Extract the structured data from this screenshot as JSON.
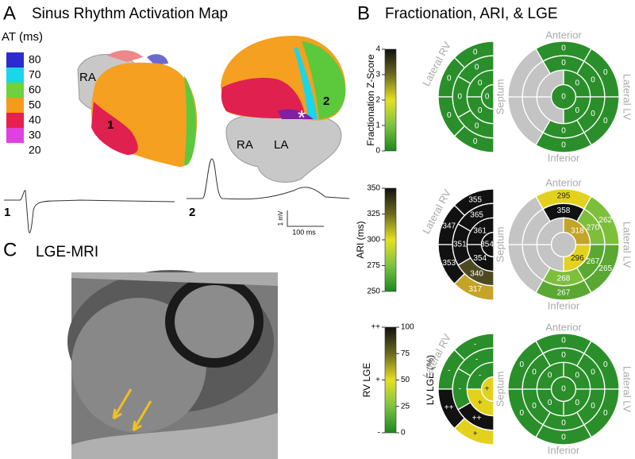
{
  "panel_a": {
    "letter": "A",
    "title": "Sinus Rhythm Activation Map",
    "legend_title": "AT (ms)",
    "legend": [
      {
        "label": 80,
        "color": "#2b2bd0"
      },
      {
        "label": 70,
        "color": "#19d6e8"
      },
      {
        "label": 60,
        "color": "#6fd23c"
      },
      {
        "label": 50,
        "color": "#f59a1a"
      },
      {
        "label": 40,
        "color": "#e8204e"
      },
      {
        "label": 30,
        "color": "#e040e0"
      },
      {
        "label": 20,
        "color": "#ffffff"
      }
    ],
    "map_labels": {
      "left_ra": "RA",
      "left_site": 1,
      "right_site": 2,
      "star": "*",
      "right_ra": "RA",
      "right_la": "LA"
    },
    "traces": [
      1,
      2
    ],
    "scale_voltage": "1 mV",
    "scale_time": "100 ms"
  },
  "panel_b": {
    "letter": "B",
    "title": "Fractionation, ARI, & LGE",
    "rows": [
      {
        "colorbar": {
          "label": "Fractionation Z-Score",
          "ylim": [
            0,
            4
          ],
          "yticks": [
            0,
            1,
            2,
            3,
            4
          ],
          "colors": [
            "#1a8a1a",
            "#7cc242",
            "#e6e020",
            "#6b6a1e",
            "#111111"
          ]
        },
        "rv": {
          "orientation": "Lateral RV",
          "segments": [
            {
              "label": 0,
              "color": "#2a8f2a"
            },
            {
              "label": 0,
              "color": "#2a8f2a"
            },
            {
              "label": 0,
              "color": "#2a8f2a"
            },
            {
              "label": 0,
              "color": "#2a8f2a"
            },
            {
              "label": 0,
              "color": "#2a8f2a"
            },
            {
              "label": 0,
              "color": "#2a8f2a"
            },
            {
              "label": 0,
              "color": "#2a8f2a"
            },
            {
              "label": 0,
              "color": "#2a8f2a"
            },
            {
              "label": 0,
              "color": "#2a8f2a"
            },
            {
              "label": 0,
              "color": "#2a8f2a"
            }
          ]
        },
        "lv": {
          "orientation": {
            "top": "Anterior",
            "bottom": "Inferior",
            "left": "Septum",
            "right": "Lateral LV"
          },
          "segments": [
            {
              "label": 0,
              "color": "#2a8f2a"
            },
            {
              "label": 0,
              "color": "#2a8f2a"
            },
            {
              "label": 0,
              "color": "#2a8f2a"
            },
            {
              "label": 0,
              "color": "#2a8f2a"
            },
            {
              "label": null,
              "color": "#c4c4c4"
            },
            {
              "label": null,
              "color": "#c4c4c4"
            },
            {
              "label": 0,
              "color": "#2a8f2a"
            },
            {
              "label": 0,
              "color": "#2a8f2a"
            },
            {
              "label": 0,
              "color": "#2a8f2a"
            },
            {
              "label": 0,
              "color": "#2a8f2a"
            },
            {
              "label": null,
              "color": "#c4c4c4"
            },
            {
              "label": null,
              "color": "#c4c4c4"
            },
            {
              "label": 0,
              "color": "#2a8f2a"
            },
            {
              "label": 0,
              "color": "#2a8f2a"
            },
            {
              "label": null,
              "color": "#c4c4c4"
            },
            {
              "label": null,
              "color": "#c4c4c4"
            },
            {
              "label": 0,
              "color": "#2a8f2a"
            }
          ]
        }
      },
      {
        "colorbar": {
          "label": "ARI (ms)",
          "ylim": [
            250,
            350
          ],
          "yticks": [
            250,
            275,
            300,
            325,
            350
          ],
          "colors": [
            "#1a8a1a",
            "#7cc242",
            "#e6e020",
            "#6b6a1e",
            "#111111"
          ]
        },
        "rv": {
          "orientation": "Lateral RV",
          "segments": [
            {
              "label": 355,
              "color": "#111111"
            },
            {
              "label": 347,
              "color": "#111111"
            },
            {
              "label": 353,
              "color": "#111111"
            },
            {
              "label": 317,
              "color": "#c4a428"
            },
            {
              "label": 365,
              "color": "#111111"
            },
            {
              "label": 351,
              "color": "#111111"
            },
            {
              "label": 340,
              "color": "#4d4a22"
            },
            {
              "label": 361,
              "color": "#111111"
            },
            {
              "label": 354,
              "color": "#111111"
            },
            {
              "label": 354,
              "color": "#111111"
            }
          ]
        },
        "lv": {
          "orientation": {
            "top": "Anterior",
            "bottom": "Inferior",
            "left": "Septum",
            "right": "Lateral LV"
          },
          "segments": [
            {
              "label": 295,
              "color": "#e2d21e"
            },
            {
              "label": 262,
              "color": "#7dbf3a"
            },
            {
              "label": 265,
              "color": "#5aa832"
            },
            {
              "label": 267,
              "color": "#5aa832"
            },
            {
              "label": null,
              "color": "#c4c4c4"
            },
            {
              "label": null,
              "color": "#c4c4c4"
            },
            {
              "label": 358,
              "color": "#111111"
            },
            {
              "label": 270,
              "color": "#7dbf3a"
            },
            {
              "label": 267,
              "color": "#5aa832"
            },
            {
              "label": 268,
              "color": "#7dbf3a"
            },
            {
              "label": null,
              "color": "#c4c4c4"
            },
            {
              "label": null,
              "color": "#c4c4c4"
            },
            {
              "label": 318,
              "color": "#c4a428"
            },
            {
              "label": 296,
              "color": "#e2d21e"
            },
            {
              "label": null,
              "color": "#c4c4c4"
            },
            {
              "label": null,
              "color": "#c4c4c4"
            },
            {
              "label": null,
              "color": "#c4c4c4"
            }
          ]
        }
      },
      {
        "colorbar": {
          "label": "RV LGE",
          "right_label": "LV LGE (%)",
          "ylim": [
            0,
            100
          ],
          "yticks": [
            {
              "value": 0,
              "label": "-"
            },
            {
              "value": 50,
              "label": "+"
            },
            {
              "value": 100,
              "label": "++"
            }
          ],
          "y2lim": [
            0,
            100
          ],
          "y2ticks": [
            0,
            25,
            50,
            75,
            100
          ],
          "colors": [
            "#1a8a1a",
            "#7cc242",
            "#e6e020",
            "#6b6a1e",
            "#111111"
          ]
        },
        "rv": {
          "orientation": "Lateral RV",
          "segments": [
            {
              "label": "-",
              "color": "#2a8f2a"
            },
            {
              "label": "-",
              "color": "#2a8f2a"
            },
            {
              "label": "++",
              "color": "#111111"
            },
            {
              "label": "+",
              "color": "#e2d21e"
            },
            {
              "label": "-",
              "color": "#2a8f2a"
            },
            {
              "label": "-",
              "color": "#2a8f2a"
            },
            {
              "label": "++",
              "color": "#111111"
            },
            {
              "label": "-",
              "color": "#2a8f2a"
            },
            {
              "label": "+",
              "color": "#e2d21e"
            },
            {
              "label": "+",
              "color": "#e2d21e"
            }
          ]
        },
        "lv": {
          "orientation": {
            "top": "Anterior",
            "bottom": "Inferior",
            "left": "Septum",
            "right": "Lateral LV"
          },
          "segments": [
            {
              "label": 0,
              "color": "#2a8f2a"
            },
            {
              "label": 0,
              "color": "#2a8f2a"
            },
            {
              "label": 0,
              "color": "#2a8f2a"
            },
            {
              "label": 0,
              "color": "#2a8f2a"
            },
            {
              "label": 0,
              "color": "#2a8f2a"
            },
            {
              "label": 0,
              "color": "#2a8f2a"
            },
            {
              "label": 0,
              "color": "#2a8f2a"
            },
            {
              "label": 0,
              "color": "#2a8f2a"
            },
            {
              "label": 0,
              "color": "#2a8f2a"
            },
            {
              "label": 0,
              "color": "#2a8f2a"
            },
            {
              "label": 0,
              "color": "#2a8f2a"
            },
            {
              "label": 0,
              "color": "#2a8f2a"
            },
            {
              "label": 0,
              "color": "#2a8f2a"
            },
            {
              "label": 0,
              "color": "#2a8f2a"
            },
            {
              "label": 0,
              "color": "#2a8f2a"
            },
            {
              "label": 0,
              "color": "#2a8f2a"
            },
            {
              "label": 0,
              "color": "#2a8f2a"
            }
          ]
        }
      }
    ]
  },
  "panel_c": {
    "letter": "C",
    "title": "LGE-MRI"
  }
}
